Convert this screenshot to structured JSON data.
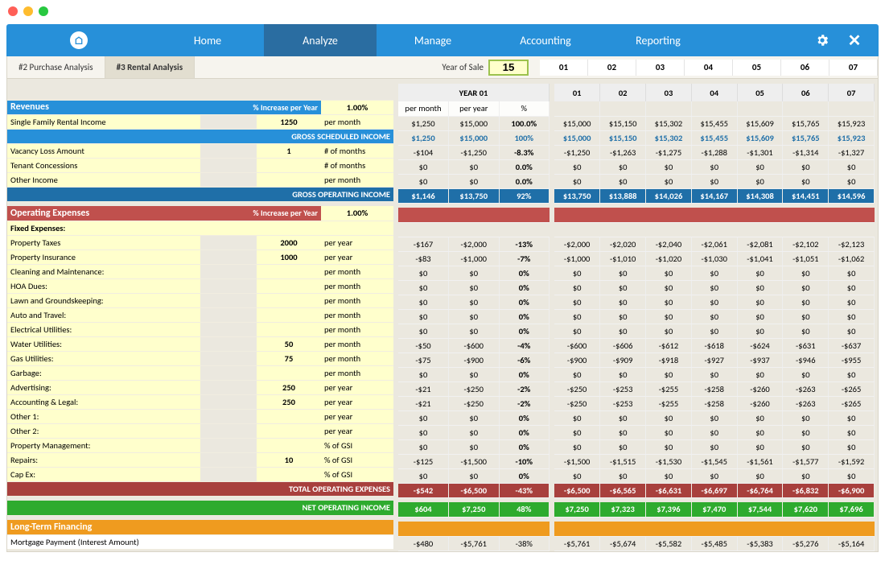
{
  "colors": {
    "ribbon": "#2790d9",
    "ribbon_active": "#2a6da1",
    "area_bg": "#ebe8df",
    "blue_hdr": "#2790d9",
    "blue_dk": "#1f6fa8",
    "red_hdr": "#c0504d",
    "red_dk": "#a8403d",
    "green_hdr": "#2eab2e",
    "orange_hdr": "#ef9b1f",
    "input_yellow": "#ffffcc",
    "traffic_red": "#ff5f57",
    "traffic_amber": "#febc2e",
    "traffic_green": "#28c840"
  },
  "ribbon": {
    "tabs": [
      "Home",
      "Analyze",
      "Manage",
      "Accounting",
      "Reporting"
    ],
    "active_index": 1
  },
  "subtabs": {
    "items": [
      "#2 Purchase Analysis",
      "#3 Rental Analysis"
    ],
    "active_index": 1,
    "year_of_sale_label": "Year of Sale",
    "year_of_sale_value": "15"
  },
  "year_headers": [
    "01",
    "02",
    "03",
    "04",
    "05",
    "06",
    "07"
  ],
  "mid_header": {
    "title": "YEAR 01",
    "cols": [
      "per month",
      "per year",
      "%"
    ]
  },
  "revenues": {
    "title": "Revenues",
    "pct_label": "% Increase per Year",
    "pct_value": "1.00%",
    "rows": [
      {
        "label": "Single Family Rental Income",
        "input": "1250",
        "unit": "per month",
        "mid": [
          "$1,250",
          "$15,000",
          "100.0%"
        ],
        "yr": [
          "$15,000",
          "$15,150",
          "$15,302",
          "$15,455",
          "$15,609",
          "$15,765",
          "$15,923"
        ]
      }
    ],
    "gsi": {
      "label": "GROSS SCHEDULED INCOME",
      "mid": [
        "$1,250",
        "$15,000",
        "100%"
      ],
      "yr": [
        "$15,000",
        "$15,150",
        "$15,302",
        "$15,455",
        "$15,609",
        "$15,765",
        "$15,923"
      ]
    },
    "detail": [
      {
        "label": "Vacancy Loss Amount",
        "input": "1",
        "unit": "# of months",
        "mid": [
          "-$104",
          "-$1,250",
          "-8.3%"
        ],
        "yr": [
          "-$1,250",
          "-$1,263",
          "-$1,275",
          "-$1,288",
          "-$1,301",
          "-$1,314",
          "-$1,327"
        ]
      },
      {
        "label": "Tenant Concessions",
        "input": "",
        "unit": "# of months",
        "mid": [
          "$0",
          "$0",
          "0.0%"
        ],
        "yr": [
          "$0",
          "$0",
          "$0",
          "$0",
          "$0",
          "$0",
          "$0"
        ]
      },
      {
        "label": "Other Income",
        "input": "",
        "unit": "per month",
        "mid": [
          "$0",
          "$0",
          "0.0%"
        ],
        "yr": [
          "$0",
          "$0",
          "$0",
          "$0",
          "$0",
          "$0",
          "$0"
        ]
      }
    ],
    "goi": {
      "label": "GROSS OPERATING INCOME",
      "mid": [
        "$1,146",
        "$13,750",
        "92%"
      ],
      "yr": [
        "$13,750",
        "$13,888",
        "$14,026",
        "$14,167",
        "$14,308",
        "$14,451",
        "$14,596"
      ]
    }
  },
  "opex": {
    "title": "Operating Expenses",
    "pct_label": "% Increase per Year",
    "pct_value": "1.00%",
    "fixed_label": "Fixed Expenses:",
    "rows": [
      {
        "label": "Property Taxes",
        "input": "2000",
        "unit": "per year",
        "mid": [
          "-$167",
          "-$2,000",
          "-13%"
        ],
        "yr": [
          "-$2,000",
          "-$2,020",
          "-$2,040",
          "-$2,061",
          "-$2,081",
          "-$2,102",
          "-$2,123"
        ]
      },
      {
        "label": "Property Insurance",
        "input": "1000",
        "unit": "per year",
        "mid": [
          "-$83",
          "-$1,000",
          "-7%"
        ],
        "yr": [
          "-$1,000",
          "-$1,010",
          "-$1,020",
          "-$1,030",
          "-$1,041",
          "-$1,051",
          "-$1,062"
        ]
      },
      {
        "label": "Cleaning and Maintenance:",
        "input": "",
        "unit": "per month",
        "mid": [
          "$0",
          "$0",
          "0%"
        ],
        "yr": [
          "$0",
          "$0",
          "$0",
          "$0",
          "$0",
          "$0",
          "$0"
        ]
      },
      {
        "label": "HOA Dues:",
        "input": "",
        "unit": "per month",
        "mid": [
          "$0",
          "$0",
          "0%"
        ],
        "yr": [
          "$0",
          "$0",
          "$0",
          "$0",
          "$0",
          "$0",
          "$0"
        ]
      },
      {
        "label": "Lawn and Groundskeeping:",
        "input": "",
        "unit": "per month",
        "mid": [
          "$0",
          "$0",
          "0%"
        ],
        "yr": [
          "$0",
          "$0",
          "$0",
          "$0",
          "$0",
          "$0",
          "$0"
        ]
      },
      {
        "label": "Auto and Travel:",
        "input": "",
        "unit": "per month",
        "mid": [
          "$0",
          "$0",
          "0%"
        ],
        "yr": [
          "$0",
          "$0",
          "$0",
          "$0",
          "$0",
          "$0",
          "$0"
        ]
      },
      {
        "label": "Electrical Utilities:",
        "input": "",
        "unit": "per month",
        "mid": [
          "$0",
          "$0",
          "0%"
        ],
        "yr": [
          "$0",
          "$0",
          "$0",
          "$0",
          "$0",
          "$0",
          "$0"
        ]
      },
      {
        "label": "Water Utilities:",
        "input": "50",
        "unit": "per month",
        "mid": [
          "-$50",
          "-$600",
          "-4%"
        ],
        "yr": [
          "-$600",
          "-$606",
          "-$612",
          "-$618",
          "-$624",
          "-$631",
          "-$637"
        ]
      },
      {
        "label": "Gas Utilities:",
        "input": "75",
        "unit": "per month",
        "mid": [
          "-$75",
          "-$900",
          "-6%"
        ],
        "yr": [
          "-$900",
          "-$909",
          "-$918",
          "-$927",
          "-$937",
          "-$946",
          "-$955"
        ]
      },
      {
        "label": "Garbage:",
        "input": "",
        "unit": "per month",
        "mid": [
          "$0",
          "$0",
          "0%"
        ],
        "yr": [
          "$0",
          "$0",
          "$0",
          "$0",
          "$0",
          "$0",
          "$0"
        ]
      },
      {
        "label": "Advertising:",
        "input": "250",
        "unit": "per year",
        "mid": [
          "-$21",
          "-$250",
          "-2%"
        ],
        "yr": [
          "-$250",
          "-$253",
          "-$255",
          "-$258",
          "-$260",
          "-$263",
          "-$265"
        ]
      },
      {
        "label": "Accounting & Legal:",
        "input": "250",
        "unit": "per year",
        "mid": [
          "-$21",
          "-$250",
          "-2%"
        ],
        "yr": [
          "-$250",
          "-$253",
          "-$255",
          "-$258",
          "-$260",
          "-$263",
          "-$265"
        ]
      },
      {
        "label": "Other 1:",
        "input": "",
        "unit": "per year",
        "mid": [
          "$0",
          "$0",
          "0%"
        ],
        "yr": [
          "$0",
          "$0",
          "$0",
          "$0",
          "$0",
          "$0",
          "$0"
        ]
      },
      {
        "label": "Other 2:",
        "input": "",
        "unit": "per year",
        "mid": [
          "$0",
          "$0",
          "0%"
        ],
        "yr": [
          "$0",
          "$0",
          "$0",
          "$0",
          "$0",
          "$0",
          "$0"
        ]
      },
      {
        "label": "Property Management:",
        "input": "",
        "unit": "% of GSI",
        "mid": [
          "$0",
          "$0",
          "0%"
        ],
        "yr": [
          "$0",
          "$0",
          "$0",
          "$0",
          "$0",
          "$0",
          "$0"
        ]
      },
      {
        "label": "Repairs:",
        "input": "10",
        "unit": "% of GSI",
        "mid": [
          "-$125",
          "-$1,500",
          "-10%"
        ],
        "yr": [
          "-$1,500",
          "-$1,515",
          "-$1,530",
          "-$1,545",
          "-$1,561",
          "-$1,577",
          "-$1,592"
        ]
      },
      {
        "label": "Cap Ex:",
        "input": "",
        "unit": "% of GSI",
        "mid": [
          "$0",
          "$0",
          "0%"
        ],
        "yr": [
          "$0",
          "$0",
          "$0",
          "$0",
          "$0",
          "$0",
          "$0"
        ]
      }
    ],
    "total": {
      "label": "TOTAL OPERATING EXPENSES",
      "mid": [
        "-$542",
        "-$6,500",
        "-43%"
      ],
      "yr": [
        "-$6,500",
        "-$6,565",
        "-$6,631",
        "-$6,697",
        "-$6,764",
        "-$6,832",
        "-$6,900"
      ]
    }
  },
  "noi": {
    "label": "NET OPERATING INCOME",
    "mid": [
      "$604",
      "$7,250",
      "48%"
    ],
    "yr": [
      "$7,250",
      "$7,323",
      "$7,396",
      "$7,470",
      "$7,544",
      "$7,620",
      "$7,696"
    ]
  },
  "financing": {
    "title": "Long-Term Financing",
    "rows": [
      {
        "label": "Mortgage Payment (Interest Amount)",
        "mid": [
          "-$480",
          "-$5,761",
          "-38%"
        ],
        "yr": [
          "-$5,761",
          "-$5,674",
          "-$5,582",
          "-$5,485",
          "-$5,383",
          "-$5,276",
          "-$5,164"
        ]
      }
    ]
  }
}
